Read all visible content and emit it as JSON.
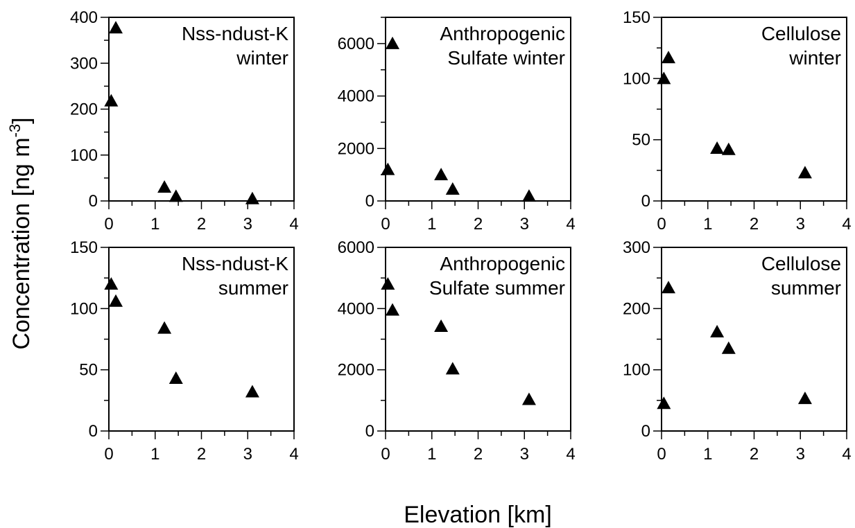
{
  "figure": {
    "ylabel_prefix": "Concentration [ng m",
    "ylabel_sup": "-3",
    "ylabel_suffix": "]",
    "xlabel": "Elevation [km]"
  },
  "chart_data": [
    {
      "type": "scatter",
      "label_lines": [
        "Nss-ndust-K",
        "winter"
      ],
      "xlim": [
        0,
        4
      ],
      "ylim": [
        0,
        400
      ],
      "xticks": [
        0,
        1,
        2,
        3,
        4
      ],
      "yticks": [
        0,
        100,
        200,
        300,
        400
      ],
      "x": [
        0.05,
        0.15,
        1.2,
        1.45,
        3.1
      ],
      "y": [
        218,
        377,
        30,
        10,
        5
      ]
    },
    {
      "type": "scatter",
      "label_lines": [
        "Anthropogenic",
        "Sulfate winter"
      ],
      "xlim": [
        0,
        4
      ],
      "ylim": [
        0,
        7000
      ],
      "xticks": [
        0,
        1,
        2,
        3,
        4
      ],
      "yticks": [
        0,
        2000,
        4000,
        6000
      ],
      "x": [
        0.05,
        0.15,
        1.2,
        1.45,
        3.1
      ],
      "y": [
        1200,
        6000,
        1000,
        450,
        180
      ]
    },
    {
      "type": "scatter",
      "label_lines": [
        "Cellulose",
        "winter"
      ],
      "xlim": [
        0,
        4
      ],
      "ylim": [
        0,
        150
      ],
      "xticks": [
        0,
        1,
        2,
        3,
        4
      ],
      "yticks": [
        0,
        50,
        100,
        150
      ],
      "x": [
        0.05,
        0.15,
        1.2,
        1.45,
        3.1
      ],
      "y": [
        100,
        117,
        43,
        42,
        23
      ]
    },
    {
      "type": "scatter",
      "label_lines": [
        "Nss-ndust-K",
        "summer"
      ],
      "xlim": [
        0,
        4
      ],
      "ylim": [
        0,
        150
      ],
      "xticks": [
        0,
        1,
        2,
        3,
        4
      ],
      "yticks": [
        0,
        50,
        100,
        150
      ],
      "x": [
        0.05,
        0.15,
        1.2,
        1.45,
        3.1
      ],
      "y": [
        120,
        106,
        84,
        43,
        32
      ]
    },
    {
      "type": "scatter",
      "label_lines": [
        "Anthropogenic",
        "Sulfate summer"
      ],
      "xlim": [
        0,
        4
      ],
      "ylim": [
        0,
        6000
      ],
      "xticks": [
        0,
        1,
        2,
        3,
        4
      ],
      "yticks": [
        0,
        2000,
        4000,
        6000
      ],
      "x": [
        0.05,
        0.15,
        1.2,
        1.45,
        3.1
      ],
      "y": [
        4800,
        3950,
        3420,
        2030,
        1030
      ]
    },
    {
      "type": "scatter",
      "label_lines": [
        "Cellulose",
        "summer"
      ],
      "xlim": [
        0,
        4
      ],
      "ylim": [
        0,
        300
      ],
      "xticks": [
        0,
        1,
        2,
        3,
        4
      ],
      "yticks": [
        0,
        100,
        200,
        300
      ],
      "x": [
        0.05,
        0.15,
        1.2,
        1.45,
        3.1
      ],
      "y": [
        45,
        234,
        162,
        135,
        53
      ]
    }
  ]
}
